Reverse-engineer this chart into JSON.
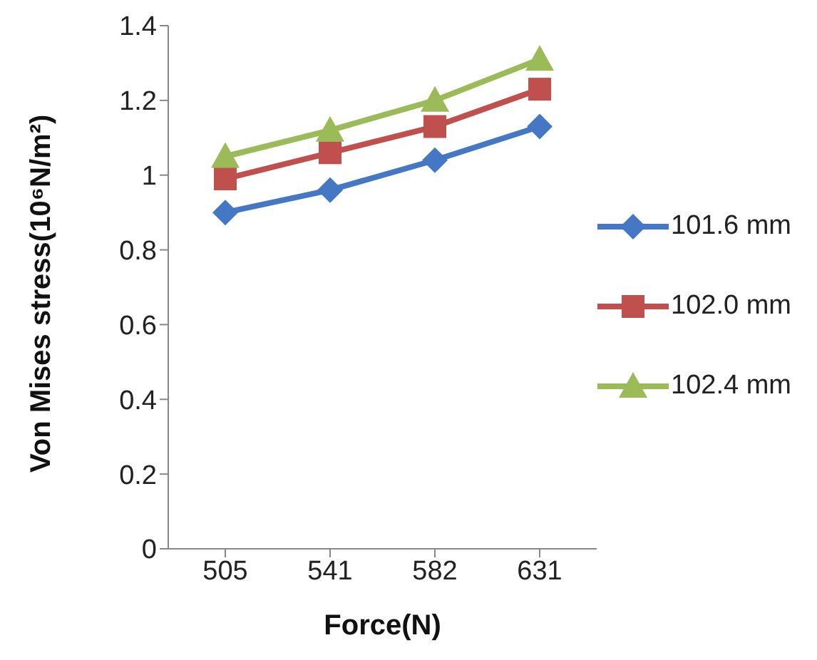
{
  "chart_data": {
    "type": "line",
    "xlabel": "Force(N)",
    "ylabel": "Von Mises stress(10⁶N/m²)",
    "categories": [
      "505",
      "541",
      "582",
      "631"
    ],
    "series": [
      {
        "name": "101.6 mm",
        "color": "#4477c4",
        "values": [
          0.9,
          0.96,
          1.04,
          1.13
        ],
        "marker": "diamond"
      },
      {
        "name": "102.0 mm",
        "color": "#c0504d",
        "values": [
          0.99,
          1.06,
          1.13,
          1.23
        ],
        "marker": "square"
      },
      {
        "name": "102.4 mm",
        "color": "#9bbb59",
        "values": [
          1.05,
          1.12,
          1.2,
          1.31
        ],
        "marker": "triangle"
      }
    ],
    "ylim": [
      0,
      1.4
    ],
    "yticks": [
      0,
      0.2,
      0.4,
      0.6,
      0.8,
      1,
      1.2,
      1.4
    ],
    "grid": false,
    "legend": "right"
  }
}
